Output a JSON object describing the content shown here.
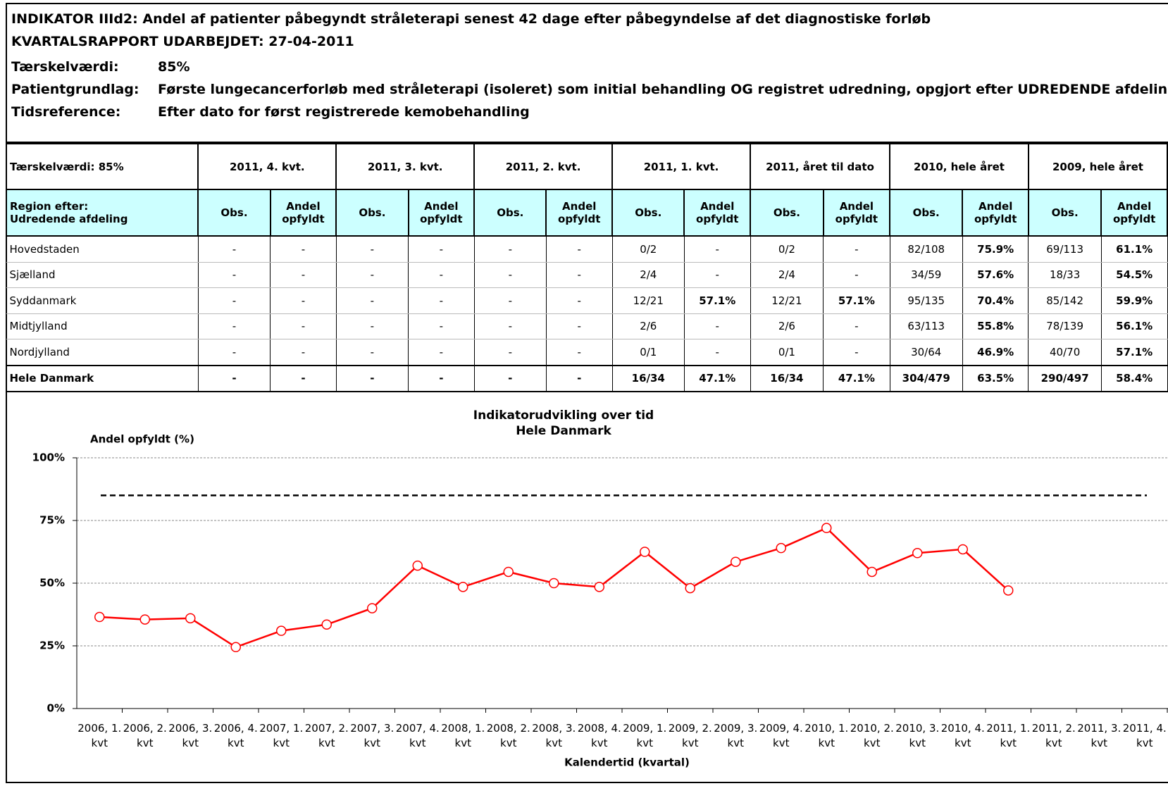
{
  "header": {
    "title": "INDIKATOR IIId2: Andel af patienter påbegyndt stråleterapi senest 42 dage efter påbegyndelse af det diagnostiske forløb",
    "report_date": "KVARTALSRAPPORT UDARBEJDET: 27-04-2011",
    "fields": [
      {
        "label": "Tærskelværdi:",
        "value": "85%"
      },
      {
        "label": "Patientgrundlag:",
        "value": "Første lungecancerforløb med stråleterapi (isoleret) som initial behandling OG registret udredning, opgjort efter UDREDENDE afdeling"
      },
      {
        "label": "Tidsreference:",
        "value": "Efter dato for først registrerede kemobehandling"
      }
    ]
  },
  "table": {
    "corner": "Tærskelværdi:  85%",
    "periods": [
      "2011, 4. kvt.",
      "2011, 3. kvt.",
      "2011, 2. kvt.",
      "2011, 1. kvt.",
      "2011, året til dato",
      "2010, hele året",
      "2009, hele året"
    ],
    "region_header": [
      "Region efter:",
      "Udredende afdeling"
    ],
    "obs_header": "Obs.",
    "share_header": [
      "Andel",
      "opfyldt"
    ],
    "rows": [
      {
        "name": "Hovedstaden",
        "cells": [
          "-",
          "-",
          "-",
          "-",
          "-",
          "-",
          "0/2",
          "-",
          "0/2",
          "-",
          "82/108",
          "75.9%",
          "69/113",
          "61.1%"
        ]
      },
      {
        "name": "Sjælland",
        "cells": [
          "-",
          "-",
          "-",
          "-",
          "-",
          "-",
          "2/4",
          "-",
          "2/4",
          "-",
          "34/59",
          "57.6%",
          "18/33",
          "54.5%"
        ]
      },
      {
        "name": "Syddanmark",
        "cells": [
          "-",
          "-",
          "-",
          "-",
          "-",
          "-",
          "12/21",
          "57.1%",
          "12/21",
          "57.1%",
          "95/135",
          "70.4%",
          "85/142",
          "59.9%"
        ]
      },
      {
        "name": "Midtjylland",
        "cells": [
          "-",
          "-",
          "-",
          "-",
          "-",
          "-",
          "2/6",
          "-",
          "2/6",
          "-",
          "63/113",
          "55.8%",
          "78/139",
          "56.1%"
        ]
      },
      {
        "name": "Nordjylland",
        "cells": [
          "-",
          "-",
          "-",
          "-",
          "-",
          "-",
          "0/1",
          "-",
          "0/1",
          "-",
          "30/64",
          "46.9%",
          "40/70",
          "57.1%"
        ]
      },
      {
        "name": "Hele Danmark",
        "cells": [
          "-",
          "-",
          "-",
          "-",
          "-",
          "-",
          "16/34",
          "47.1%",
          "16/34",
          "47.1%",
          "304/479",
          "63.5%",
          "290/497",
          "58.4%"
        ]
      }
    ]
  },
  "chart_data": {
    "type": "line",
    "title": [
      "Indikatorudvikling over tid",
      "Hele Danmark"
    ],
    "y_label": "Andel opfyldt (%)",
    "x_label": "Kalendertid (kvartal)",
    "categories": [
      "2006, 1. kvt",
      "2006, 2. kvt",
      "2006, 3. kvt",
      "2006, 4. kvt",
      "2007, 1. kvt",
      "2007, 2. kvt",
      "2007, 3. kvt",
      "2007, 4. kvt",
      "2008, 1. kvt",
      "2008, 2. kvt",
      "2008, 3. kvt",
      "2008, 4. kvt",
      "2009, 1. kvt",
      "2009, 2. kvt",
      "2009, 3. kvt",
      "2009, 4. kvt",
      "2010, 1. kvt",
      "2010, 2. kvt",
      "2010, 3. kvt",
      "2010, 4. kvt",
      "2011, 1. kvt",
      "2011, 2. kvt",
      "2011, 3. kvt",
      "2011, 4. kvt"
    ],
    "values": [
      36.5,
      35.5,
      36,
      24.5,
      31,
      33.5,
      40,
      57,
      48.5,
      54.5,
      50,
      48.5,
      62.5,
      48,
      58.5,
      64,
      72,
      54.5,
      62,
      63.5,
      47.1,
      null,
      null,
      null
    ],
    "color": "#ff0000",
    "reference_line": 85,
    "ylim": [
      0,
      100
    ],
    "yticks": [
      {
        "value": 0,
        "label": "0%"
      },
      {
        "value": 25,
        "label": "25%"
      },
      {
        "value": 50,
        "label": "50%"
      },
      {
        "value": 75,
        "label": "75%"
      },
      {
        "value": 100,
        "label": "100%"
      }
    ],
    "grid": true
  }
}
